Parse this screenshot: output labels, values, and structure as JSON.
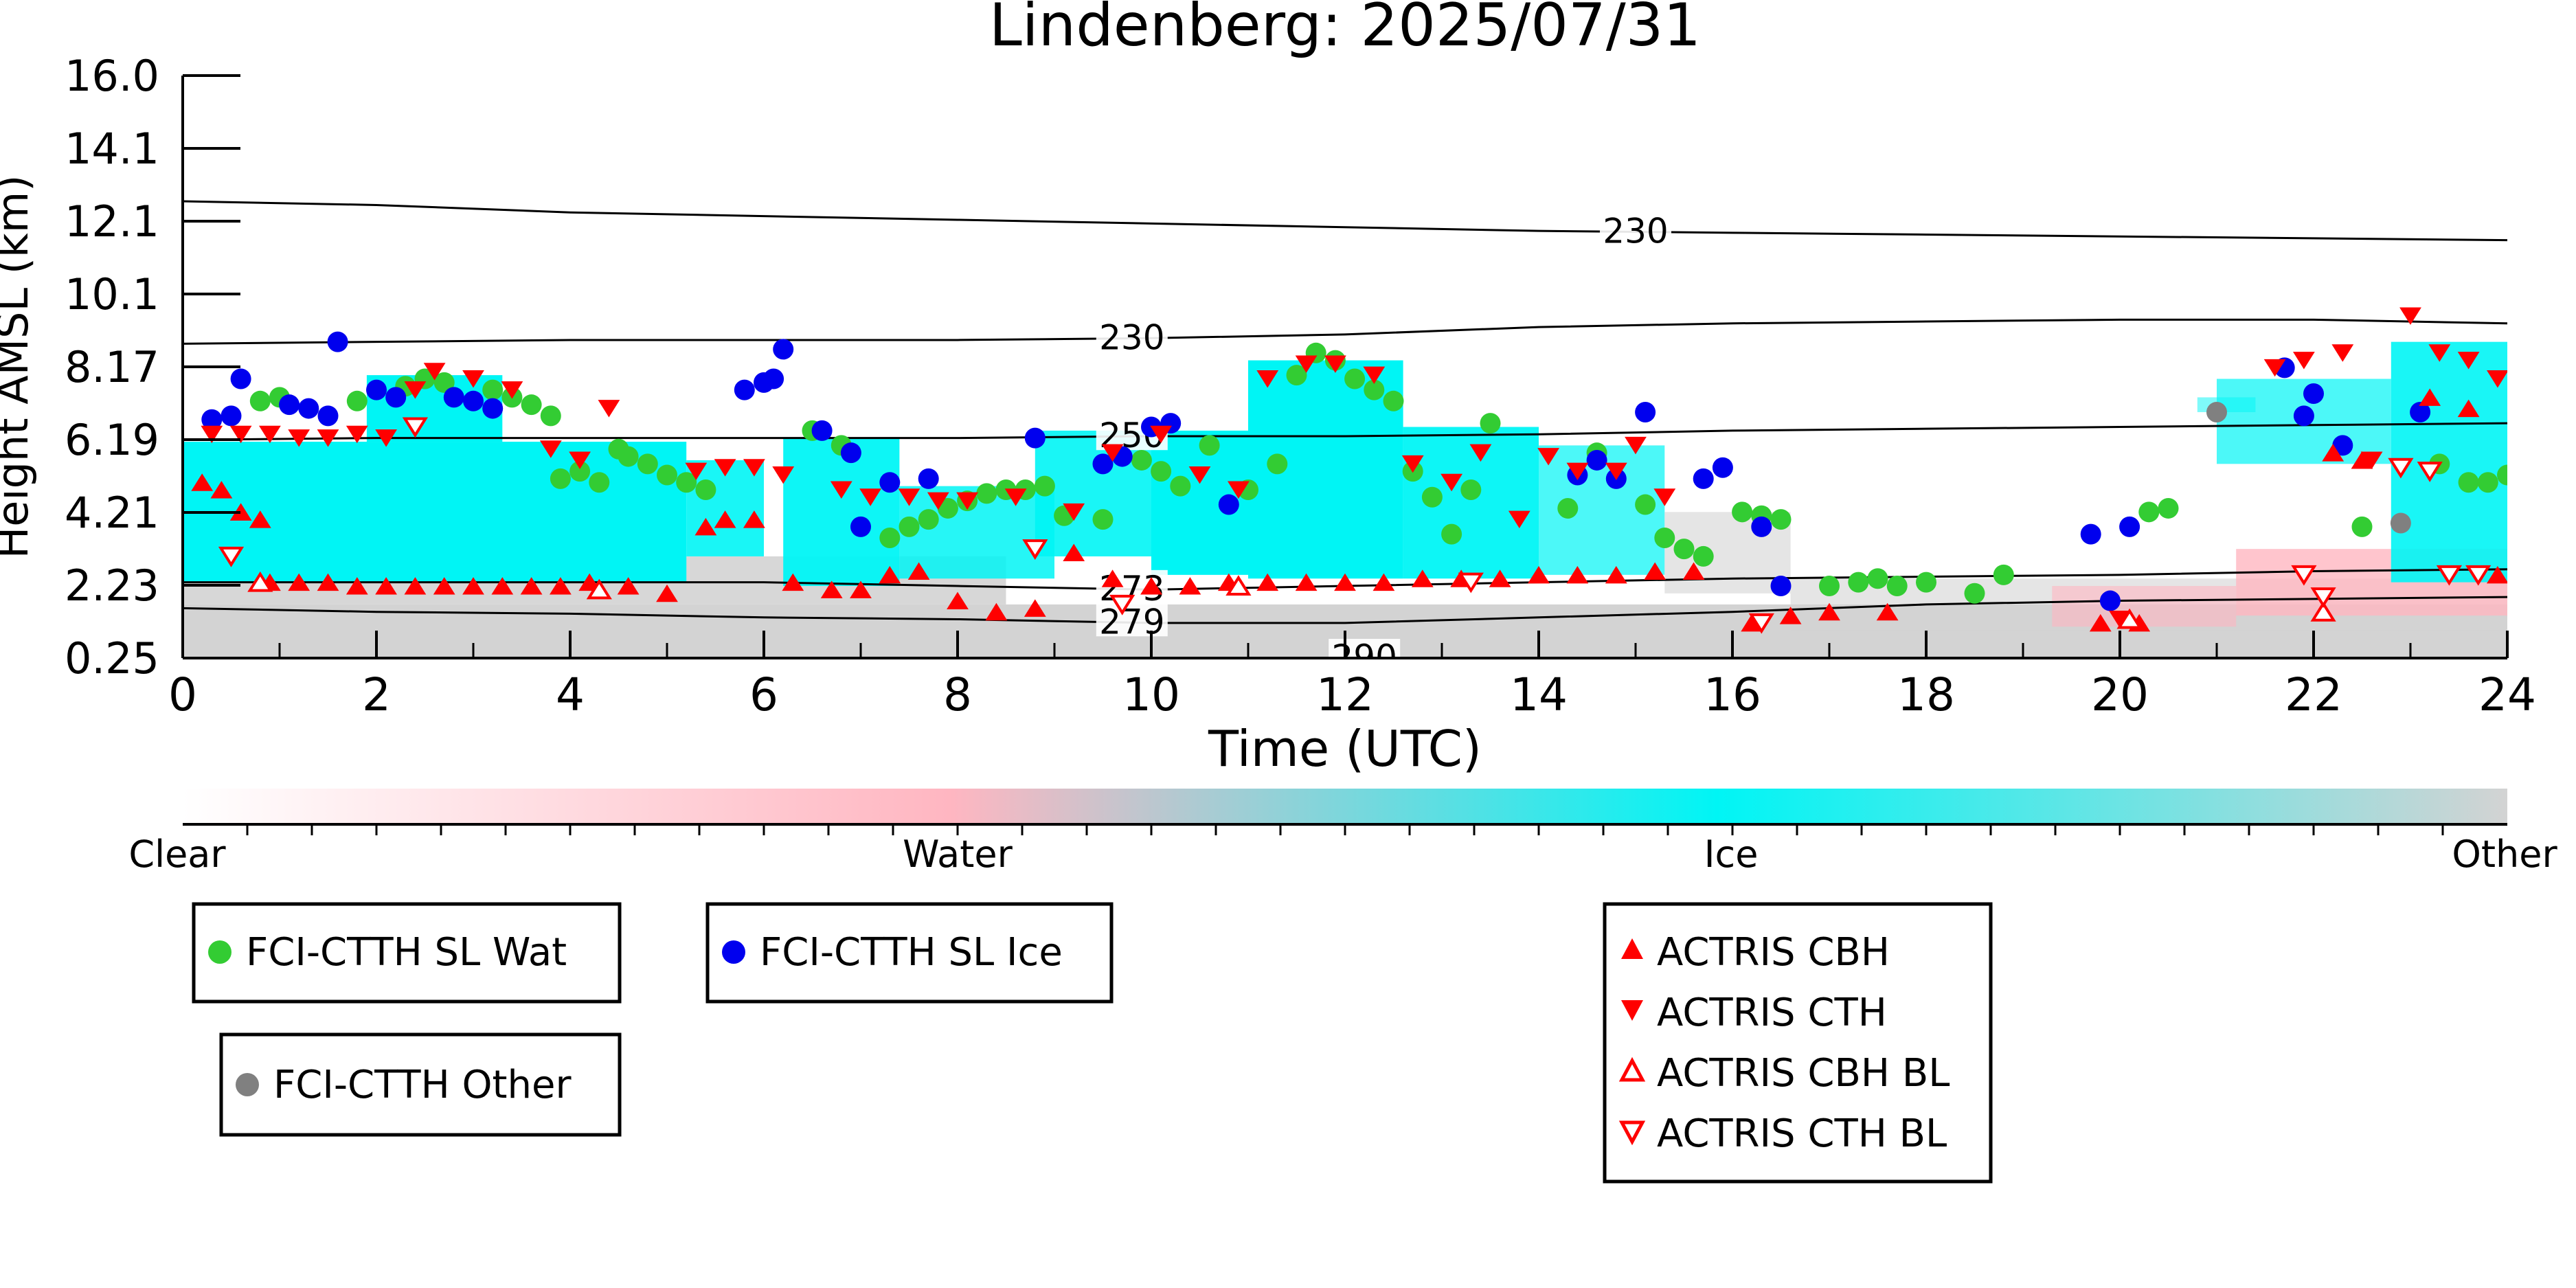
{
  "chart_data": {
    "type": "scatter",
    "title": "Lindenberg: 2025/07/31",
    "xlabel": "Time (UTC)",
    "ylabel": "Height AMSL (km)",
    "xlim": [
      0,
      24
    ],
    "ylim": [
      0.25,
      16.0
    ],
    "x_ticks": [
      "0",
      "2",
      "4",
      "6",
      "8",
      "10",
      "12",
      "14",
      "16",
      "18",
      "20",
      "22",
      "24"
    ],
    "y_ticks": [
      "0.25",
      "2.23",
      "4.21",
      "6.19",
      "8.17",
      "10.1",
      "12.1",
      "14.1",
      "16.0"
    ],
    "colorbar": {
      "labels": [
        "Clear",
        "Water",
        "Ice",
        "Other"
      ],
      "colors": [
        "#ffffff",
        "#ffb6c1",
        "#00f5f5",
        "#d3d3d3"
      ]
    },
    "isotherms": [
      {
        "label": "230",
        "y": [
          12.6,
          12.5,
          12.3,
          12.2,
          12.1,
          12.0,
          11.9,
          11.8,
          11.75,
          11.7,
          11.65,
          11.6,
          11.55
        ]
      },
      {
        "label": "230",
        "y": [
          8.75,
          8.8,
          8.85,
          8.85,
          8.85,
          8.9,
          9.0,
          9.2,
          9.3,
          9.35,
          9.4,
          9.4,
          9.3
        ]
      },
      {
        "label": "250",
        "y": [
          6.15,
          6.2,
          6.2,
          6.2,
          6.2,
          6.25,
          6.25,
          6.3,
          6.4,
          6.45,
          6.5,
          6.55,
          6.6
        ]
      },
      {
        "label": "273",
        "y": [
          2.3,
          2.3,
          2.3,
          2.3,
          2.2,
          2.1,
          2.2,
          2.3,
          2.4,
          2.45,
          2.5,
          2.6,
          2.65
        ]
      },
      {
        "label": "279",
        "y": [
          1.6,
          1.5,
          1.45,
          1.35,
          1.3,
          1.2,
          1.2,
          1.35,
          1.5,
          1.7,
          1.8,
          1.85,
          1.9
        ]
      },
      {
        "label": "290",
        "y": []
      }
    ],
    "series": [
      {
        "name": "FCI-CTTH SL Wat",
        "color": "#33cc33",
        "marker": "circle",
        "x": [
          0.8,
          1.0,
          1.8,
          2.3,
          2.5,
          2.7,
          3.2,
          3.4,
          3.6,
          3.8,
          3.9,
          4.1,
          4.3,
          4.5,
          4.6,
          4.8,
          5.0,
          5.2,
          5.4,
          6.5,
          6.8,
          7.3,
          7.5,
          7.7,
          7.9,
          8.1,
          8.3,
          8.5,
          8.7,
          8.9,
          9.1,
          9.5,
          9.9,
          10.1,
          10.3,
          10.6,
          11.0,
          11.3,
          11.5,
          11.7,
          11.9,
          12.1,
          12.3,
          12.5,
          12.7,
          12.9,
          13.1,
          13.3,
          13.5,
          14.3,
          14.6,
          15.1,
          15.3,
          15.5,
          15.7,
          16.1,
          16.3,
          16.5,
          17.0,
          17.3,
          17.5,
          17.7,
          18.0,
          18.5,
          18.8,
          20.3,
          20.5,
          22.5,
          23.3,
          23.6,
          23.8,
          24.0
        ],
        "y": [
          7.2,
          7.3,
          7.2,
          7.6,
          7.8,
          7.7,
          7.5,
          7.3,
          7.1,
          6.8,
          5.1,
          5.3,
          5.0,
          5.9,
          5.7,
          5.5,
          5.2,
          5.0,
          4.8,
          6.4,
          6.0,
          3.5,
          3.8,
          4.0,
          4.3,
          4.5,
          4.7,
          4.8,
          4.8,
          4.9,
          4.1,
          4.0,
          5.6,
          5.3,
          4.9,
          6.0,
          4.8,
          5.5,
          7.9,
          8.5,
          8.3,
          7.8,
          7.5,
          7.2,
          5.3,
          4.6,
          3.6,
          4.8,
          6.6,
          4.3,
          5.8,
          4.4,
          3.5,
          3.2,
          3.0,
          4.2,
          4.1,
          4.0,
          2.2,
          2.3,
          2.4,
          2.2,
          2.3,
          2.0,
          2.5,
          4.2,
          4.3,
          3.8,
          5.5,
          5.0,
          5.0,
          5.2
        ]
      },
      {
        "name": "FCI-CTTH SL Ice",
        "color": "#0000ee",
        "marker": "circle",
        "x": [
          0.3,
          0.5,
          0.6,
          1.1,
          1.3,
          1.5,
          1.6,
          2.0,
          2.2,
          2.8,
          3.0,
          3.2,
          5.8,
          6.0,
          6.1,
          6.2,
          6.6,
          6.9,
          7.0,
          7.3,
          7.7,
          8.8,
          9.5,
          9.7,
          10.0,
          10.2,
          10.8,
          14.4,
          14.6,
          14.8,
          15.1,
          15.7,
          15.9,
          16.3,
          16.5,
          19.7,
          19.9,
          20.1,
          21.7,
          21.9,
          22.0,
          22.3,
          23.1
        ],
        "y": [
          6.7,
          6.8,
          7.8,
          7.1,
          7.0,
          6.8,
          8.8,
          7.5,
          7.3,
          7.3,
          7.2,
          7.0,
          7.5,
          7.7,
          7.8,
          8.6,
          6.4,
          5.8,
          3.8,
          5.0,
          5.1,
          6.2,
          5.5,
          5.7,
          6.5,
          6.6,
          4.4,
          5.2,
          5.6,
          5.1,
          6.9,
          5.1,
          5.4,
          3.8,
          2.2,
          3.6,
          1.8,
          3.8,
          8.1,
          6.8,
          7.4,
          6.0,
          6.9
        ]
      },
      {
        "name": "FCI-CTTH Other",
        "color": "#808080",
        "marker": "circle",
        "x": [
          21.0,
          22.9
        ],
        "y": [
          6.9,
          3.9
        ]
      },
      {
        "name": "ACTRIS CBH",
        "color": "#ff0000",
        "marker": "triangle-up",
        "filled": true,
        "x": [
          0.2,
          0.4,
          0.6,
          0.8,
          0.9,
          1.2,
          1.5,
          1.8,
          2.1,
          2.4,
          2.7,
          3.0,
          3.3,
          3.6,
          3.9,
          4.2,
          4.6,
          5.0,
          5.4,
          5.6,
          5.9,
          6.3,
          6.7,
          7.0,
          7.3,
          7.6,
          8.0,
          8.4,
          8.8,
          9.2,
          9.6,
          10.0,
          10.4,
          10.8,
          11.2,
          11.6,
          12.0,
          12.4,
          12.8,
          13.2,
          13.6,
          14.0,
          14.4,
          14.8,
          15.2,
          15.6,
          16.2,
          16.6,
          17.0,
          17.6,
          19.8,
          20.2,
          22.2,
          22.5,
          23.2,
          23.6,
          23.9
        ],
        "y": [
          5.0,
          4.8,
          4.2,
          4.0,
          2.3,
          2.3,
          2.3,
          2.2,
          2.2,
          2.2,
          2.2,
          2.2,
          2.2,
          2.2,
          2.2,
          2.3,
          2.2,
          2.0,
          3.8,
          4.0,
          4.0,
          2.3,
          2.1,
          2.1,
          2.5,
          2.6,
          1.8,
          1.5,
          1.6,
          3.1,
          2.4,
          2.2,
          2.2,
          2.3,
          2.3,
          2.3,
          2.3,
          2.3,
          2.4,
          2.4,
          2.4,
          2.5,
          2.5,
          2.5,
          2.6,
          2.6,
          1.2,
          1.4,
          1.5,
          1.5,
          1.2,
          1.2,
          5.8,
          5.6,
          7.3,
          7.0,
          2.5
        ],
        "labelled": "above"
      },
      {
        "name": "ACTRIS CTH",
        "color": "#ff0000",
        "marker": "triangle-down",
        "filled": true,
        "x": [
          0.3,
          0.6,
          0.9,
          1.2,
          1.5,
          1.8,
          2.1,
          2.4,
          2.6,
          3.0,
          3.4,
          3.8,
          4.1,
          4.4,
          5.3,
          5.6,
          5.9,
          6.2,
          6.8,
          7.1,
          7.5,
          7.8,
          8.1,
          8.6,
          9.2,
          9.6,
          10.1,
          10.5,
          10.9,
          11.2,
          11.6,
          11.9,
          12.3,
          12.7,
          13.1,
          13.4,
          13.8,
          14.1,
          14.4,
          14.8,
          15.0,
          15.3,
          20.0,
          21.6,
          21.9,
          22.3,
          22.6,
          23.0,
          23.3,
          23.6,
          23.9
        ],
        "y": [
          6.3,
          6.3,
          6.3,
          6.2,
          6.2,
          6.3,
          6.2,
          7.5,
          8.0,
          7.8,
          7.5,
          5.9,
          5.6,
          7.0,
          5.3,
          5.4,
          5.4,
          5.2,
          4.8,
          4.6,
          4.6,
          4.5,
          4.5,
          4.6,
          4.2,
          5.8,
          6.3,
          5.2,
          4.8,
          7.8,
          8.2,
          8.2,
          7.9,
          5.5,
          5.0,
          5.8,
          4.0,
          5.7,
          5.3,
          5.3,
          6.0,
          4.6,
          1.3,
          8.1,
          8.3,
          8.5,
          5.6,
          9.5,
          8.5,
          8.3,
          7.8
        ]
      },
      {
        "name": "ACTRIS CBH BL",
        "color": "#ff0000",
        "marker": "triangle-up",
        "filled": false,
        "x": [
          0.8,
          4.3,
          10.9,
          20.1,
          22.1
        ],
        "y": [
          2.3,
          2.1,
          2.2,
          1.3,
          1.5
        ]
      },
      {
        "name": "ACTRIS CTH BL",
        "color": "#ff0000",
        "marker": "triangle-down",
        "filled": false,
        "x": [
          0.5,
          2.4,
          8.8,
          9.7,
          13.3,
          16.3,
          21.9,
          22.1,
          22.9,
          23.2,
          23.4,
          23.7
        ],
        "y": [
          3.0,
          6.5,
          3.2,
          1.7,
          2.3,
          1.2,
          2.5,
          1.9,
          5.4,
          5.3,
          2.5,
          2.5
        ]
      }
    ],
    "legend": {
      "boxes": [
        [
          "FCI-CTTH SL Wat"
        ],
        [
          "FCI-CTTH SL Ice"
        ],
        [
          "FCI-CTTH Other"
        ],
        [
          "ACTRIS CBH",
          "ACTRIS CTH",
          "ACTRIS CBH BL",
          "ACTRIS CTH BL"
        ]
      ]
    },
    "grid": false
  }
}
